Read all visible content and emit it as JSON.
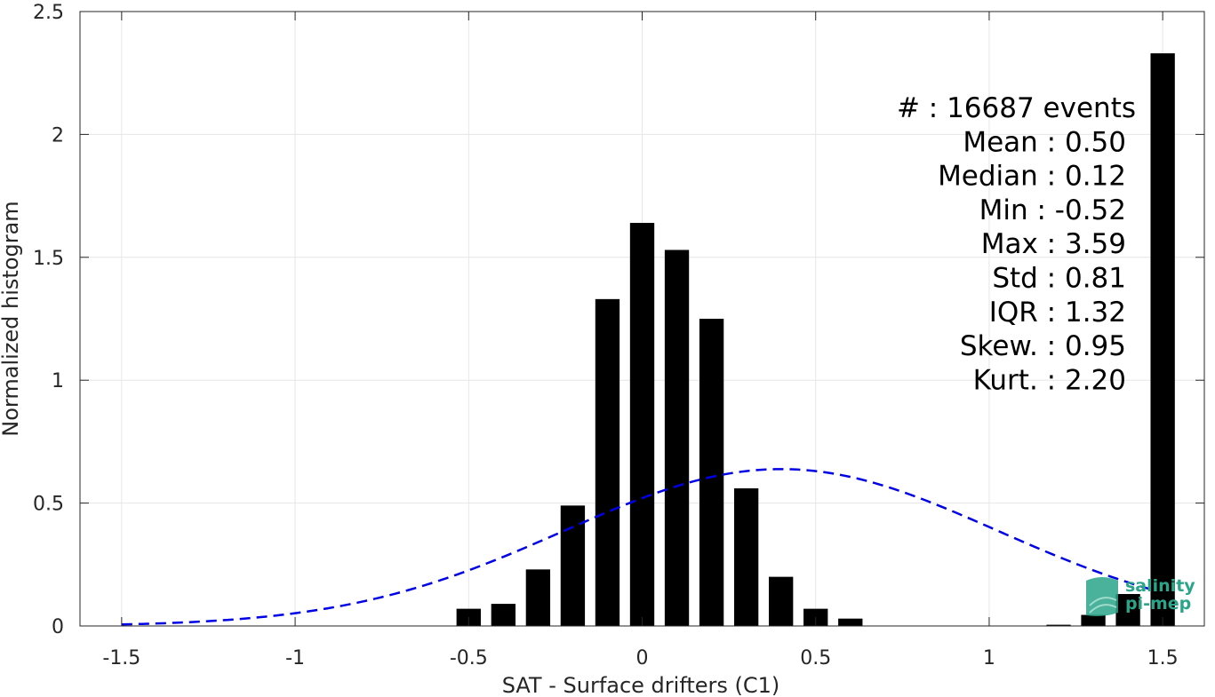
{
  "chart_data": {
    "type": "bar",
    "xlabel": "SAT - Surface drifters (C1)",
    "ylabel": "Normalized histogram",
    "xlim": [
      -1.62,
      1.62
    ],
    "ylim": [
      0,
      2.5
    ],
    "grid": true,
    "x_ticks": [
      -1.5,
      -1,
      -0.5,
      0,
      0.5,
      1,
      1.5
    ],
    "x_tick_labels": [
      "-1.5",
      "-1",
      "-0.5",
      "0",
      "0.5",
      "1",
      "1.5"
    ],
    "y_ticks": [
      0,
      0.5,
      1,
      1.5,
      2,
      2.5
    ],
    "y_tick_labels": [
      "0",
      "0.5",
      "1",
      "1.5",
      "2",
      "2.5"
    ],
    "bar_color": "#000000",
    "bars": {
      "x": [
        -0.5,
        -0.4,
        -0.3,
        -0.2,
        -0.1,
        0.0,
        0.1,
        0.2,
        0.3,
        0.4,
        0.5,
        0.6,
        0.7,
        0.8,
        0.9,
        1.0,
        1.1,
        1.2,
        1.3,
        1.4,
        1.5
      ],
      "values": [
        0.07,
        0.09,
        0.23,
        0.49,
        1.33,
        1.64,
        1.53,
        1.25,
        0.56,
        0.2,
        0.07,
        0.03,
        0.0,
        0.0,
        0.0,
        0.0,
        0.0,
        0.005,
        0.045,
        0.13,
        2.33
      ]
    },
    "fit_curve": {
      "style": "dashed",
      "color": "#0000e6",
      "mean": 0.4,
      "std": 0.625,
      "x_start": -1.5,
      "x_end": 1.47
    },
    "annotations": [
      "#  : 16687 events",
      "Mean : 0.50",
      "Median : 0.12",
      "Min : -0.52",
      "Max : 3.59",
      "Std : 0.81",
      "IQR : 1.32",
      "Skew. : 0.95",
      "Kurt. : 2.20"
    ]
  },
  "logo": {
    "line1": "salinity",
    "line2": "pi-mep",
    "color": "#2aa58a"
  }
}
